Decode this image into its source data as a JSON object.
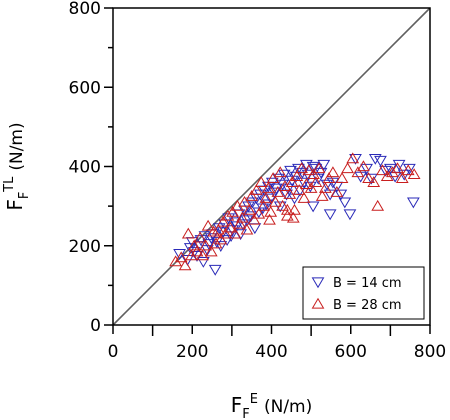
{
  "chart_data": {
    "type": "scatter",
    "xlabel": {
      "main": "F",
      "sub": "F",
      "sup": "E",
      "unit": "(N/m)"
    },
    "ylabel": {
      "main": "F",
      "sub": "F",
      "sup": "TL",
      "unit": "(N/m)"
    },
    "xlim": [
      0,
      800
    ],
    "ylim": [
      0,
      800
    ],
    "x_ticks": [
      "0",
      "200",
      "400",
      "600",
      "800"
    ],
    "y_ticks": [
      "0",
      "200",
      "400",
      "600",
      "800"
    ],
    "grid": false,
    "reference_line": {
      "x": [
        0,
        800
      ],
      "y": [
        0,
        800
      ],
      "color": "#606060"
    },
    "legend_position": "bottom-right",
    "series": [
      {
        "name": "B = 14 cm",
        "marker": "triangle-down",
        "color": "#2a2ab8",
        "points": [
          [
            168,
            180
          ],
          [
            188,
            165
          ],
          [
            195,
            195
          ],
          [
            200,
            210
          ],
          [
            205,
            185
          ],
          [
            212,
            175
          ],
          [
            218,
            200
          ],
          [
            222,
            215
          ],
          [
            228,
            160
          ],
          [
            232,
            225
          ],
          [
            238,
            190
          ],
          [
            242,
            205
          ],
          [
            248,
            220
          ],
          [
            252,
            230
          ],
          [
            258,
            140
          ],
          [
            262,
            210
          ],
          [
            268,
            245
          ],
          [
            272,
            200
          ],
          [
            278,
            235
          ],
          [
            282,
            255
          ],
          [
            288,
            215
          ],
          [
            292,
            270
          ],
          [
            298,
            225
          ],
          [
            302,
            240
          ],
          [
            308,
            260
          ],
          [
            312,
            250
          ],
          [
            318,
            280
          ],
          [
            322,
            230
          ],
          [
            328,
            255
          ],
          [
            332,
            290
          ],
          [
            338,
            265
          ],
          [
            342,
            300
          ],
          [
            348,
            275
          ],
          [
            352,
            310
          ],
          [
            358,
            245
          ],
          [
            362,
            320
          ],
          [
            368,
            285
          ],
          [
            372,
            330
          ],
          [
            378,
            295
          ],
          [
            382,
            340
          ],
          [
            388,
            305
          ],
          [
            392,
            350
          ],
          [
            398,
            320
          ],
          [
            402,
            360
          ],
          [
            408,
            335
          ],
          [
            412,
            345
          ],
          [
            418,
            370
          ],
          [
            422,
            300
          ],
          [
            428,
            355
          ],
          [
            432,
            380
          ],
          [
            438,
            330
          ],
          [
            442,
            345
          ],
          [
            448,
            390
          ],
          [
            452,
            365
          ],
          [
            458,
            320
          ],
          [
            462,
            375
          ],
          [
            468,
            395
          ],
          [
            472,
            340
          ],
          [
            478,
            385
          ],
          [
            482,
            360
          ],
          [
            488,
            405
          ],
          [
            492,
            380
          ],
          [
            498,
            350
          ],
          [
            505,
            400
          ],
          [
            512,
            395
          ],
          [
            518,
            370
          ],
          [
            525,
            385
          ],
          [
            532,
            405
          ],
          [
            540,
            355
          ],
          [
            548,
            330
          ],
          [
            555,
            360
          ],
          [
            565,
            350
          ],
          [
            575,
            330
          ],
          [
            585,
            310
          ],
          [
            598,
            280
          ],
          [
            612,
            420
          ],
          [
            625,
            375
          ],
          [
            640,
            395
          ],
          [
            652,
            370
          ],
          [
            662,
            420
          ],
          [
            675,
            415
          ],
          [
            688,
            390
          ],
          [
            700,
            395
          ],
          [
            712,
            375
          ],
          [
            722,
            405
          ],
          [
            735,
            380
          ],
          [
            748,
            395
          ],
          [
            758,
            310
          ],
          [
            548,
            280
          ],
          [
            505,
            300
          ]
        ]
      },
      {
        "name": "B = 28 cm",
        "marker": "triangle-up",
        "color": "#c81e1e",
        "points": [
          [
            158,
            160
          ],
          [
            172,
            170
          ],
          [
            182,
            150
          ],
          [
            190,
            230
          ],
          [
            198,
            175
          ],
          [
            205,
            200
          ],
          [
            212,
            185
          ],
          [
            220,
            220
          ],
          [
            226,
            175
          ],
          [
            234,
            200
          ],
          [
            240,
            250
          ],
          [
            248,
            185
          ],
          [
            254,
            235
          ],
          [
            260,
            205
          ],
          [
            266,
            240
          ],
          [
            272,
            215
          ],
          [
            278,
            260
          ],
          [
            284,
            230
          ],
          [
            290,
            275
          ],
          [
            296,
            245
          ],
          [
            302,
            285
          ],
          [
            308,
            230
          ],
          [
            314,
            300
          ],
          [
            320,
            255
          ],
          [
            326,
            270
          ],
          [
            332,
            310
          ],
          [
            338,
            240
          ],
          [
            344,
            290
          ],
          [
            350,
            325
          ],
          [
            356,
            265
          ],
          [
            362,
            340
          ],
          [
            368,
            280
          ],
          [
            374,
            360
          ],
          [
            380,
            300
          ],
          [
            386,
            320
          ],
          [
            392,
            345
          ],
          [
            398,
            285
          ],
          [
            404,
            370
          ],
          [
            410,
            310
          ],
          [
            416,
            335
          ],
          [
            422,
            385
          ],
          [
            428,
            300
          ],
          [
            434,
            350
          ],
          [
            440,
            275
          ],
          [
            446,
            330
          ],
          [
            452,
            360
          ],
          [
            458,
            290
          ],
          [
            464,
            375
          ],
          [
            470,
            340
          ],
          [
            476,
            395
          ],
          [
            482,
            320
          ],
          [
            488,
            355
          ],
          [
            494,
            390
          ],
          [
            500,
            345
          ],
          [
            506,
            380
          ],
          [
            512,
            360
          ],
          [
            520,
            395
          ],
          [
            528,
            325
          ],
          [
            536,
            345
          ],
          [
            545,
            370
          ],
          [
            555,
            385
          ],
          [
            565,
            335
          ],
          [
            578,
            370
          ],
          [
            592,
            395
          ],
          [
            605,
            420
          ],
          [
            618,
            385
          ],
          [
            632,
            400
          ],
          [
            645,
            370
          ],
          [
            658,
            360
          ],
          [
            668,
            300
          ],
          [
            680,
            390
          ],
          [
            692,
            375
          ],
          [
            705,
            385
          ],
          [
            718,
            395
          ],
          [
            730,
            370
          ],
          [
            745,
            390
          ],
          [
            760,
            380
          ],
          [
            440,
            290
          ],
          [
            455,
            270
          ],
          [
            395,
            265
          ]
        ]
      }
    ]
  }
}
